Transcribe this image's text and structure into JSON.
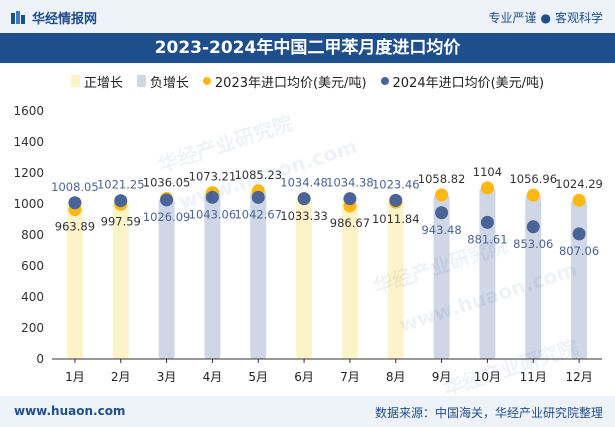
{
  "header": {
    "brand": "华经情报网",
    "tagline_left": "专业严谨",
    "tagline_right": "客观科学"
  },
  "footer": {
    "website": "www.huaon.com",
    "source": "数据来源：中国海关，华经产业研究院整理"
  },
  "watermarks": [
    "华经产业研究院",
    "www.huaon.com",
    "华经产业研究院",
    "www.huaon.com",
    "华经产业研究院"
  ],
  "colors": {
    "header_bg": "#1f4e8c",
    "positive": "#fdf3c8",
    "negative": "#cfd6e6",
    "series_2023": "#fdb813",
    "series_2024": "#4a6496"
  },
  "chart_data": {
    "type": "bar+scatter",
    "title": "2023-2024年中国二甲苯月度进口均价",
    "categories": [
      "1月",
      "2月",
      "3月",
      "4月",
      "5月",
      "6月",
      "7月",
      "8月",
      "9月",
      "10月",
      "11月",
      "12月"
    ],
    "ylim": [
      0,
      1600
    ],
    "yticks": [
      0,
      200,
      400,
      600,
      800,
      1000,
      1200,
      1400,
      1600
    ],
    "grid": false,
    "legend_position": "top",
    "legend": [
      "正增长",
      "负增长",
      "2023年进口均价(美元/吨)",
      "2024年进口均价(美元/吨)"
    ],
    "series": [
      {
        "name": "2023年进口均价(美元/吨)",
        "values": [
          963.89,
          997.59,
          1036.05,
          1073.21,
          1085.23,
          1033.33,
          986.67,
          1011.84,
          1058.82,
          1104,
          1056.96,
          1024.29
        ],
        "labels": [
          "963.89",
          "997.59",
          "1036.05",
          "1073.21",
          "1085.23",
          "1033.33",
          "986.67",
          "1011.84",
          "1058.82",
          "1104",
          "1056.96",
          "1024.29"
        ]
      },
      {
        "name": "2024年进口均价(美元/吨)",
        "values": [
          1008.05,
          1021.25,
          1026.09,
          1043.06,
          1042.67,
          1034.48,
          1034.38,
          1023.46,
          943.48,
          881.61,
          853.06,
          807.06
        ],
        "labels": [
          "1008.05",
          "1021.25",
          "1026.09",
          "1043.06",
          "1042.67",
          "1034.48",
          "1034.38",
          "1023.46",
          "943.48",
          "881.61",
          "853.06",
          "807.06"
        ]
      }
    ],
    "label_layout": {
      "above": [
        "2024",
        "2024",
        "2023",
        "2023",
        "2023",
        "2024",
        "2024",
        "2024",
        "2023",
        "2023",
        "2023",
        "2023"
      ]
    }
  }
}
